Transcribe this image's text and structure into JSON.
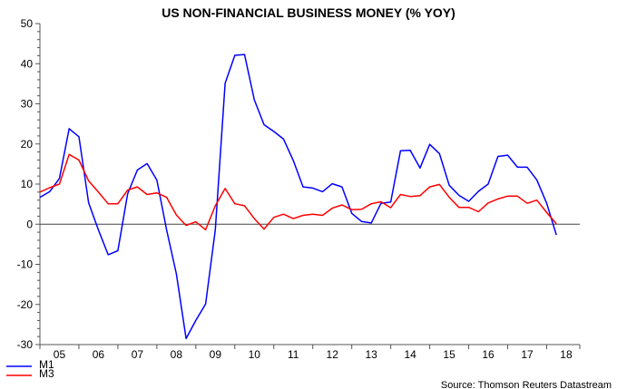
{
  "chart_data": {
    "type": "line",
    "title": "US NON-FINANCIAL BUSINESS MONEY (% YOY)",
    "source": "Source: Thomson Reuters Datastream",
    "frequency": "quarterly",
    "x_start": "2005Q1",
    "x_end": "2018Q2",
    "xlim": [
      2005,
      2018.85
    ],
    "ylim": [
      -30,
      50
    ],
    "y_ticks": [
      50,
      40,
      30,
      20,
      10,
      0,
      -10,
      -20,
      -30
    ],
    "x_tick_labels": [
      "05",
      "06",
      "07",
      "08",
      "09",
      "10",
      "11",
      "12",
      "13",
      "14",
      "15",
      "16",
      "17",
      "18"
    ],
    "zero_line": true,
    "grid": false,
    "legend_position": "bottom-left",
    "series": [
      {
        "name": "M1",
        "color": "#0000ff",
        "values": [
          6.7,
          8.1,
          11.4,
          23.8,
          21.8,
          5.3,
          -1.4,
          -7.6,
          -6.6,
          7.6,
          13.5,
          15.1,
          11.0,
          -1.4,
          -12.4,
          -28.5,
          -24.0,
          -19.9,
          -1.4,
          35.1,
          42.1,
          42.3,
          31.0,
          24.8,
          23.1,
          21.2,
          15.9,
          9.3,
          9.0,
          8.1,
          10.1,
          9.3,
          2.7,
          0.7,
          0.3,
          5.2,
          5.5,
          18.3,
          18.4,
          14.0,
          19.9,
          17.6,
          9.7,
          7.2,
          5.7,
          8.2,
          10.0,
          16.9,
          17.2,
          14.2,
          14.2,
          11.0,
          5.2,
          -2.7
        ]
      },
      {
        "name": "M3",
        "color": "#ff0000",
        "values": [
          8.0,
          9.1,
          10.0,
          17.4,
          16.0,
          10.8,
          8.0,
          5.1,
          5.1,
          8.5,
          9.3,
          7.4,
          7.8,
          6.7,
          2.3,
          -0.3,
          0.6,
          -1.4,
          4.6,
          8.9,
          5.1,
          4.6,
          1.4,
          -1.2,
          1.7,
          2.5,
          1.4,
          2.2,
          2.5,
          2.2,
          4.0,
          4.8,
          3.6,
          3.7,
          5.1,
          5.6,
          4.1,
          7.4,
          6.9,
          7.1,
          9.3,
          9.9,
          6.7,
          4.2,
          4.2,
          3.1,
          5.3,
          6.3,
          7.0,
          7.0,
          5.2,
          6.0,
          2.9,
          0.1
        ]
      }
    ]
  }
}
